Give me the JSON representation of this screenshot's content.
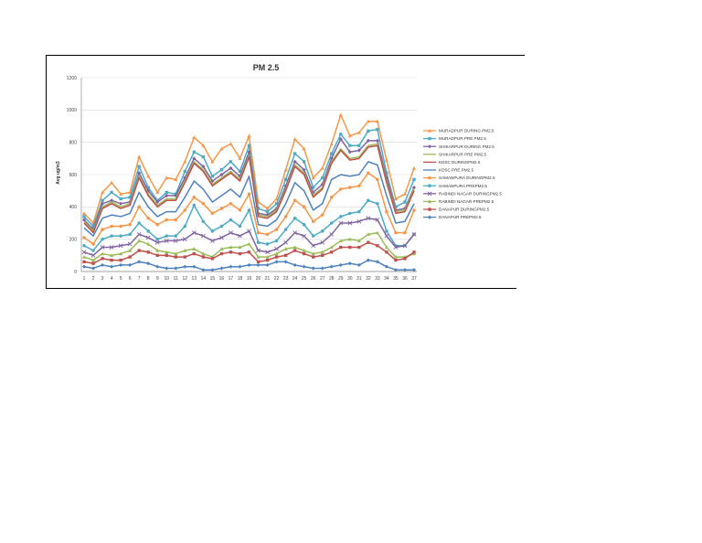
{
  "chart_data": {
    "type": "line",
    "title": "PM 2.5",
    "ylabel": "Avg ug/m3",
    "xlabel": "",
    "ylim": [
      0,
      1200
    ],
    "yticks": [
      0,
      200,
      400,
      600,
      800,
      1000,
      1200
    ],
    "grid": "horizontal",
    "legend_position": "right",
    "categories": [
      "1",
      "2",
      "3",
      "4",
      "5",
      "6",
      "7",
      "8",
      "9",
      "10",
      "11",
      "12",
      "13",
      "14",
      "15",
      "16",
      "17",
      "18",
      "19",
      "20",
      "21",
      "22",
      "23",
      "24",
      "25",
      "26",
      "27",
      "28",
      "29",
      "30",
      "31",
      "32",
      "33",
      "34",
      "35",
      "36",
      "37"
    ],
    "series": [
      {
        "name": "MURADPUR DURING PM2.5",
        "color": "#f79646",
        "marker": "triangle",
        "values": [
          360,
          300,
          490,
          550,
          480,
          490,
          710,
          590,
          490,
          580,
          570,
          680,
          830,
          780,
          680,
          760,
          790,
          700,
          840,
          430,
          390,
          450,
          630,
          820,
          760,
          580,
          640,
          790,
          970,
          840,
          860,
          930,
          930,
          690,
          450,
          480,
          640
        ]
      },
      {
        "name": "MURADPUR PRE PM2.5",
        "color": "#4bacc6",
        "marker": "square",
        "values": [
          340,
          280,
          440,
          490,
          450,
          460,
          650,
          520,
          440,
          490,
          480,
          620,
          740,
          710,
          590,
          630,
          680,
          620,
          780,
          390,
          370,
          420,
          570,
          730,
          680,
          520,
          580,
          730,
          850,
          780,
          780,
          870,
          880,
          610,
          400,
          430,
          570
        ]
      },
      {
        "name": "SHIKARPUR DURING PM2.5",
        "color": "#8064a2",
        "marker": "diamond",
        "values": [
          320,
          260,
          420,
          440,
          420,
          430,
          610,
          500,
          430,
          470,
          470,
          580,
          700,
          650,
          560,
          600,
          640,
          590,
          740,
          360,
          350,
          390,
          530,
          680,
          630,
          490,
          540,
          700,
          820,
          740,
          750,
          810,
          810,
          580,
          380,
          390,
          520
        ]
      },
      {
        "name": "SHIKARPUR PRE PM2.5",
        "color": "#9bbb59",
        "marker": "none",
        "values": [
          310,
          250,
          400,
          430,
          400,
          420,
          590,
          480,
          410,
          450,
          450,
          560,
          680,
          630,
          540,
          580,
          620,
          570,
          720,
          350,
          340,
          380,
          510,
          660,
          610,
          470,
          520,
          680,
          760,
          700,
          710,
          780,
          790,
          560,
          370,
          380,
          510
        ]
      },
      {
        "name": "KDSC DURINGPM2.5",
        "color": "#c0504d",
        "marker": "none",
        "values": [
          300,
          240,
          390,
          420,
          390,
          410,
          580,
          470,
          400,
          440,
          440,
          550,
          670,
          620,
          530,
          570,
          610,
          560,
          710,
          340,
          330,
          370,
          500,
          650,
          600,
          460,
          510,
          670,
          750,
          690,
          700,
          770,
          780,
          550,
          360,
          370,
          500
        ]
      },
      {
        "name": "KDSC PRE PM2.5",
        "color": "#4f81bd",
        "marker": "none",
        "values": [
          270,
          220,
          330,
          350,
          340,
          360,
          490,
          400,
          340,
          370,
          370,
          460,
          560,
          510,
          430,
          470,
          510,
          460,
          590,
          290,
          280,
          320,
          420,
          550,
          500,
          380,
          420,
          570,
          600,
          590,
          600,
          680,
          660,
          470,
          300,
          310,
          420
        ]
      },
      {
        "name": "SAMANPURA DURINGPM2.5",
        "color": "#f79646",
        "marker": "circle",
        "values": [
          210,
          170,
          260,
          280,
          280,
          290,
          400,
          330,
          290,
          320,
          320,
          380,
          460,
          420,
          360,
          390,
          420,
          380,
          480,
          240,
          230,
          260,
          340,
          440,
          400,
          310,
          350,
          460,
          510,
          520,
          530,
          610,
          570,
          370,
          240,
          240,
          380
        ]
      },
      {
        "name": "SAMANPURA PREPM2.5",
        "color": "#4bacc6",
        "marker": "circle",
        "values": [
          160,
          130,
          200,
          220,
          220,
          230,
          300,
          250,
          200,
          220,
          220,
          280,
          410,
          310,
          250,
          280,
          320,
          280,
          380,
          180,
          170,
          190,
          260,
          330,
          290,
          220,
          250,
          300,
          340,
          360,
          370,
          440,
          420,
          250,
          160,
          160,
          230
        ]
      },
      {
        "name": "RABINDI NAGAR DURINGPM2.5",
        "color": "#8064a2",
        "marker": "cross",
        "values": [
          120,
          100,
          150,
          150,
          160,
          170,
          230,
          210,
          180,
          190,
          190,
          200,
          240,
          220,
          190,
          210,
          240,
          220,
          250,
          130,
          120,
          140,
          180,
          240,
          220,
          160,
          180,
          230,
          300,
          300,
          310,
          330,
          320,
          220,
          150,
          160,
          230
        ]
      },
      {
        "name": "RABINDI NAGAR PREPM2.5",
        "color": "#9bbb59",
        "marker": "triangle",
        "values": [
          90,
          70,
          110,
          100,
          110,
          130,
          190,
          170,
          130,
          120,
          110,
          130,
          140,
          110,
          90,
          140,
          150,
          150,
          170,
          90,
          90,
          110,
          140,
          150,
          130,
          110,
          120,
          150,
          190,
          200,
          190,
          230,
          240,
          150,
          90,
          90,
          110
        ]
      },
      {
        "name": "DANAPUR DURINGPM2.5",
        "color": "#c0504d",
        "marker": "square",
        "values": [
          60,
          50,
          80,
          70,
          70,
          90,
          130,
          120,
          100,
          100,
          90,
          90,
          110,
          90,
          80,
          110,
          120,
          110,
          120,
          60,
          70,
          90,
          100,
          130,
          110,
          90,
          100,
          120,
          150,
          150,
          150,
          180,
          160,
          120,
          70,
          80,
          120
        ]
      },
      {
        "name": "DANAPUR PREPM2.5",
        "color": "#4f81bd",
        "marker": "diamond",
        "values": [
          30,
          20,
          40,
          30,
          40,
          40,
          60,
          50,
          30,
          20,
          20,
          30,
          30,
          10,
          10,
          20,
          30,
          30,
          40,
          40,
          40,
          60,
          60,
          40,
          30,
          20,
          20,
          30,
          40,
          50,
          40,
          70,
          60,
          30,
          10,
          10,
          10
        ]
      }
    ]
  }
}
